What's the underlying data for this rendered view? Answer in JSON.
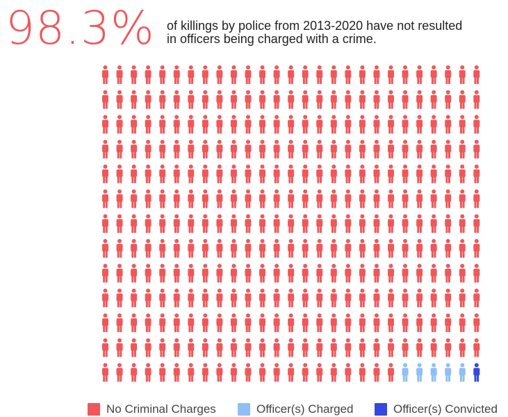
{
  "headline": {
    "stat": "98.3%",
    "subtitle_line1": "of killings by police from 2013-2020 have not resulted",
    "subtitle_line2": "in officers being charged with a crime."
  },
  "colors": {
    "no_charges": "#f0575a",
    "charged": "#8fbff5",
    "convicted": "#3548e0",
    "stat": "#f0575a"
  },
  "chart_data": {
    "type": "waffle",
    "icon": "person-icon",
    "rows": 13,
    "columns": 27,
    "total": 351,
    "categories": [
      "No Criminal Charges",
      "Officer(s) Charged",
      "Officer(s) Convicted"
    ],
    "values": [
      345,
      5,
      1
    ],
    "legend_position": "bottom"
  },
  "legend": [
    {
      "label": "No Criminal Charges",
      "color_key": "no_charges"
    },
    {
      "label": "Officer(s) Charged",
      "color_key": "charged"
    },
    {
      "label": "Officer(s) Convicted",
      "color_key": "convicted"
    }
  ]
}
